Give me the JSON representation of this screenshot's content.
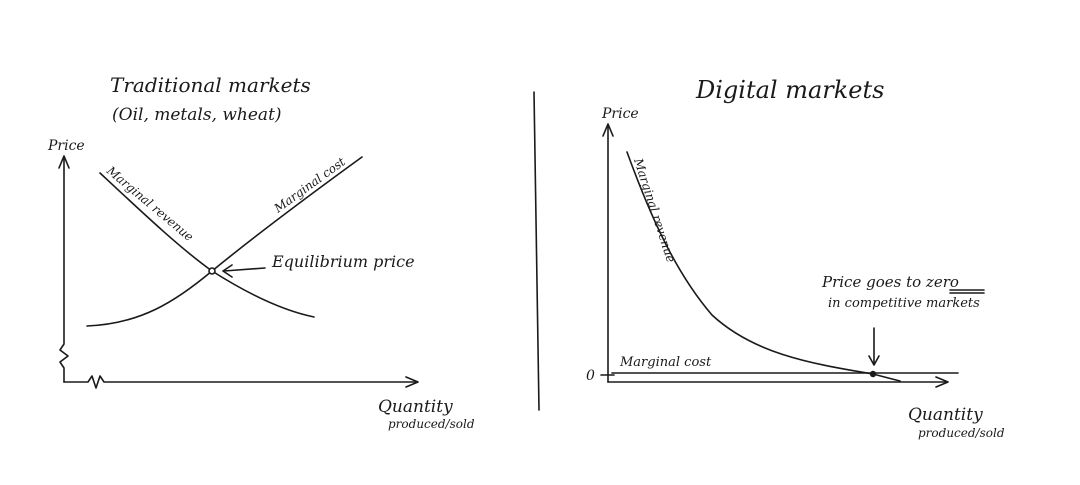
{
  "left": {
    "title": "Traditional markets",
    "subtitle": "(Oil, metals, wheat)",
    "y_axis_label": "Price",
    "x_axis_label": "Quantity",
    "x_axis_sublabel": "produced/sold",
    "marginal_revenue_label": "Marginal revenue",
    "marginal_cost_label": "Marginal cost",
    "equilibrium_label": "Equilibrium price"
  },
  "right": {
    "title": "Digital markets",
    "y_axis_label": "Price",
    "zero_label": "0",
    "x_axis_label": "Quantity",
    "x_axis_sublabel": "produced/sold",
    "marginal_revenue_label": "Marginal revenue",
    "marginal_cost_label": "Marginal cost",
    "annotation_line1_prefix": "Price goes to ",
    "annotation_line1_emph": "zero",
    "annotation_line2": "in competitive markets"
  }
}
